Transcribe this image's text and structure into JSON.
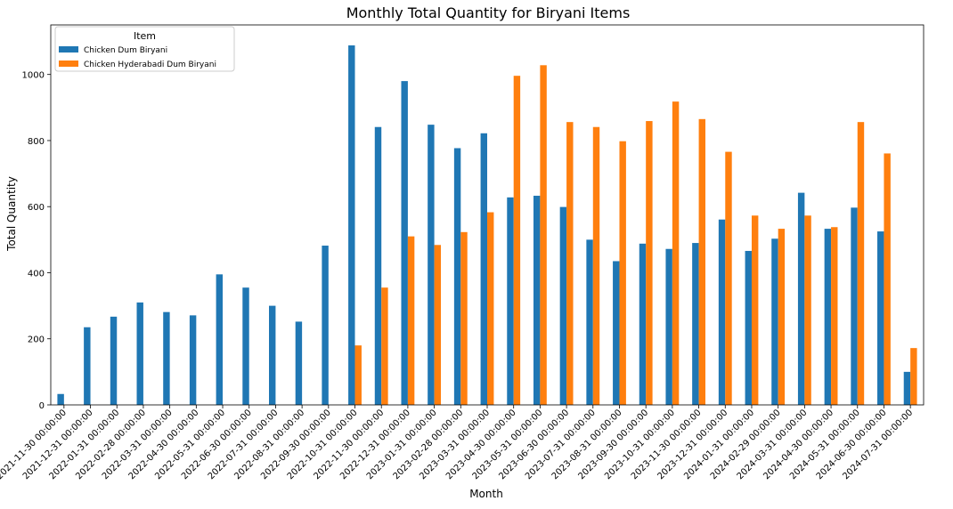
{
  "chart_data": {
    "type": "bar",
    "title": "Monthly Total Quantity for Biryani Items",
    "xlabel": "Month",
    "ylabel": "Total Quantity",
    "legend": {
      "title": "Item",
      "position": "top-left"
    },
    "grid": false,
    "ylim": [
      0,
      1150
    ],
    "yticks": [
      0,
      200,
      400,
      600,
      800,
      1000
    ],
    "categories": [
      "2021-11-30 00:00:00",
      "2021-12-31 00:00:00",
      "2022-01-31 00:00:00",
      "2022-02-28 00:00:00",
      "2022-03-31 00:00:00",
      "2022-04-30 00:00:00",
      "2022-05-31 00:00:00",
      "2022-06-30 00:00:00",
      "2022-07-31 00:00:00",
      "2022-08-31 00:00:00",
      "2022-09-30 00:00:00",
      "2022-10-31 00:00:00",
      "2022-11-30 00:00:00",
      "2022-12-31 00:00:00",
      "2023-01-31 00:00:00",
      "2023-02-28 00:00:00",
      "2023-03-31 00:00:00",
      "2023-04-30 00:00:00",
      "2023-05-31 00:00:00",
      "2023-06-30 00:00:00",
      "2023-07-31 00:00:00",
      "2023-08-31 00:00:00",
      "2023-09-30 00:00:00",
      "2023-10-31 00:00:00",
      "2023-11-30 00:00:00",
      "2023-12-31 00:00:00",
      "2024-01-31 00:00:00",
      "2024-02-29 00:00:00",
      "2024-03-31 00:00:00",
      "2024-04-30 00:00:00",
      "2024-05-31 00:00:00",
      "2024-06-30 00:00:00",
      "2024-07-31 00:00:00"
    ],
    "series": [
      {
        "name": "Chicken Dum Biryani",
        "color": "#1f77b4",
        "values": [
          33,
          235,
          267,
          310,
          281,
          271,
          395,
          355,
          300,
          252,
          482,
          1088,
          841,
          980,
          848,
          777,
          822,
          628,
          633,
          599,
          500,
          435,
          488,
          472,
          490,
          561,
          466,
          503,
          642,
          533,
          597,
          525,
          100
        ]
      },
      {
        "name": "Chicken Hyderabadi Dum Biryani",
        "color": "#ff7f0e",
        "values": [
          0,
          0,
          0,
          0,
          0,
          0,
          0,
          0,
          0,
          0,
          0,
          180,
          355,
          510,
          484,
          523,
          583,
          996,
          1028,
          856,
          841,
          798,
          859,
          918,
          865,
          766,
          573,
          533,
          573,
          538,
          856,
          761,
          172
        ]
      }
    ]
  }
}
